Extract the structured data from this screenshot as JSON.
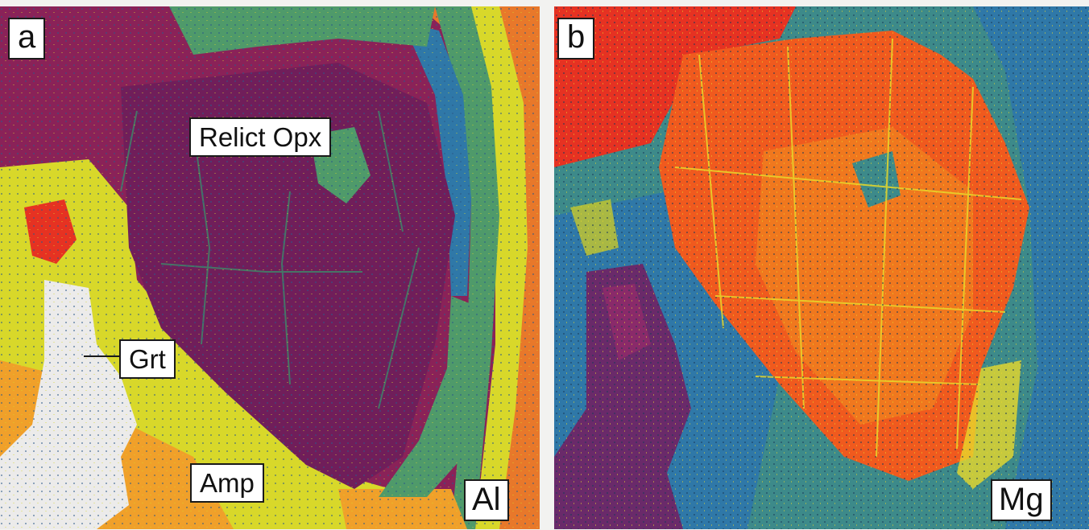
{
  "figure": {
    "panels": [
      {
        "letter": "a",
        "element": "Al",
        "labels": {
          "relict": "Relict Opx",
          "garnet": "Grt",
          "amphibole": "Amp"
        }
      },
      {
        "letter": "b",
        "element": "Mg"
      }
    ],
    "colors": {
      "opx_al": "#8c2258",
      "opx_al_dark": "#6c1e58",
      "green_zone": "#4f9a6a",
      "blue_zone": "#2f78a8",
      "yellow_zone": "#d8d82a",
      "orange_zone": "#f0a02a",
      "red_zone": "#e63222",
      "garnet_white": "#ecebea",
      "opx_mg": "#f05a1e",
      "mg_teal": "#3d8a8a",
      "mg_purple": "#6a2a6a"
    }
  }
}
